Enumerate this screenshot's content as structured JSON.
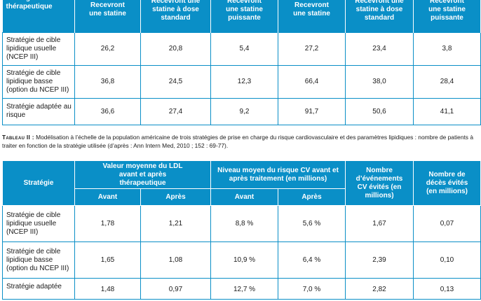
{
  "table1": {
    "header": {
      "col0": "Stratégie thérapeutique",
      "col1": "Recevront une statine",
      "col2": "Recevront une statine à dose standard",
      "col3": "Recevront une statine puissante",
      "col4": "Recevront une statine",
      "col5": "Recevront une statine à dose standard",
      "col6": "Recevront une statine puissante"
    },
    "rows": [
      {
        "label": "Stratégie de cible lipidique usuelle (NCEP III)",
        "v": [
          "26,2",
          "20,8",
          "5,4",
          "27,2",
          "23,4",
          "3,8"
        ]
      },
      {
        "label": "Stratégie de cible lipidique basse (option du NCEP III)",
        "v": [
          "36,8",
          "24,5",
          "12,3",
          "66,4",
          "38,0",
          "28,4"
        ]
      },
      {
        "label": "Stratégie adaptée au risque",
        "v": [
          "36,6",
          "27,4",
          "9,2",
          "91,7",
          "50,6",
          "41,1"
        ]
      }
    ]
  },
  "caption": {
    "label": "Tableau II :",
    "text": "Modélisation à l’échelle de la population américaine de trois stratégies de prise en charge du risque cardiovasculaire et des paramètres lipidiques : nombre de patients à traiter en fonction de la stratégie utilisée (d’après : Ann Intern Med, 2010 ; 152 : 69-77)."
  },
  "table2": {
    "header": {
      "strategie": "Stratégie",
      "ldl": "Valeur moyenne du LDL avant et après thérapeutique",
      "risque": "Niveau moyen du risque CV avant et après traitement (en millions)",
      "evenements": "Nombre d’événements CV évités (en millions)",
      "deces": "Nombre de décès évités (en millions)",
      "avant": "Avant",
      "apres": "Après"
    },
    "rows": [
      {
        "label": "Stratégie de cible lipidique usuelle (NCEP III)",
        "v": [
          "1,78",
          "1,21",
          "8,8 %",
          "5,6 %",
          "1,67",
          "0,07"
        ]
      },
      {
        "label": "Stratégie de cible lipidique basse (option du NCEP III)",
        "v": [
          "1,65",
          "1,08",
          "10,9 %",
          "6,4 %",
          "2,39",
          "0,10"
        ]
      },
      {
        "label": "Stratégie adaptée",
        "v": [
          "1,48",
          "0,97",
          "12,7 %",
          "7,0 %",
          "2,82",
          "0,13"
        ]
      }
    ]
  }
}
